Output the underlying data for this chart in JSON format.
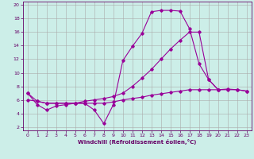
{
  "xlabel": "Windchill (Refroidissement éolien,°C)",
  "background_color": "#cceee8",
  "grid_color": "#aaaaaa",
  "line_color": "#990099",
  "xlim": [
    -0.5,
    23.5
  ],
  "ylim": [
    1.5,
    20.5
  ],
  "xticks": [
    0,
    1,
    2,
    3,
    4,
    5,
    6,
    7,
    8,
    9,
    10,
    11,
    12,
    13,
    14,
    15,
    16,
    17,
    18,
    19,
    20,
    21,
    22,
    23
  ],
  "yticks": [
    2,
    4,
    6,
    8,
    10,
    12,
    14,
    16,
    18,
    20
  ],
  "line1_x": [
    0,
    1,
    2,
    3,
    4,
    5,
    6,
    7,
    8,
    9,
    10,
    11,
    12,
    13,
    14,
    15,
    16,
    17,
    18,
    19,
    20
  ],
  "line1_y": [
    7.0,
    5.3,
    4.5,
    5.1,
    5.3,
    5.5,
    5.5,
    4.5,
    2.5,
    5.3,
    11.8,
    13.9,
    15.8,
    19.0,
    19.2,
    19.2,
    19.1,
    16.5,
    11.3,
    9.0,
    7.5
  ],
  "line2_x": [
    0,
    1,
    2,
    3,
    4,
    5,
    6,
    7,
    8,
    9,
    10,
    11,
    12,
    13,
    14,
    15,
    16,
    17,
    18,
    19,
    20,
    21,
    22,
    23
  ],
  "line2_y": [
    7.0,
    5.8,
    5.5,
    5.5,
    5.5,
    5.5,
    5.8,
    6.0,
    6.2,
    6.5,
    7.0,
    8.0,
    9.2,
    10.5,
    12.0,
    13.5,
    14.8,
    16.0,
    16.0,
    9.0,
    7.5,
    7.5,
    7.5,
    7.3
  ],
  "line3_x": [
    0,
    1,
    2,
    3,
    4,
    5,
    6,
    7,
    8,
    9,
    10,
    11,
    12,
    13,
    14,
    15,
    16,
    17,
    18,
    19,
    20,
    21,
    22,
    23
  ],
  "line3_y": [
    6.0,
    5.8,
    5.5,
    5.5,
    5.5,
    5.5,
    5.5,
    5.5,
    5.5,
    5.7,
    6.0,
    6.2,
    6.4,
    6.7,
    6.9,
    7.1,
    7.3,
    7.5,
    7.5,
    7.5,
    7.5,
    7.6,
    7.5,
    7.3
  ]
}
